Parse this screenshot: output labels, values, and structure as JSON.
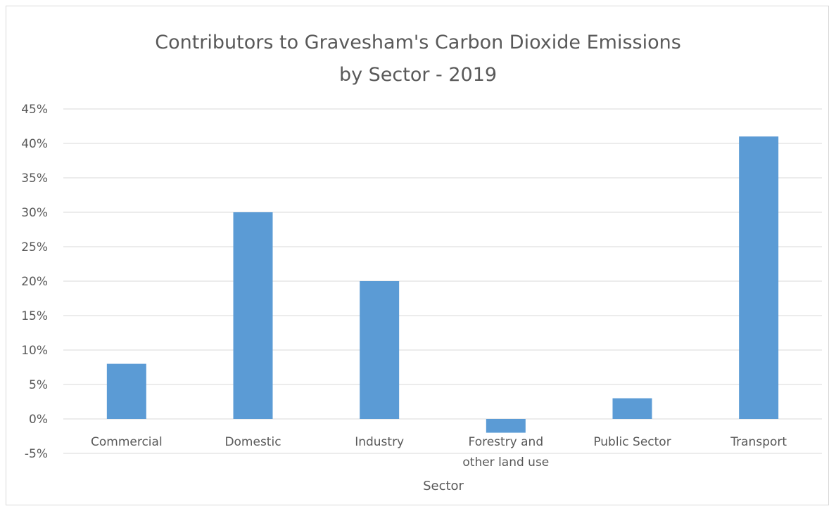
{
  "chart_data": {
    "type": "bar",
    "title_lines": [
      "Contributors to Gravesham's Carbon Dioxide Emissions",
      "by Sector - 2019"
    ],
    "xlabel": "Sector",
    "ylabel": "",
    "categories": [
      [
        "Commercial"
      ],
      [
        "Domestic"
      ],
      [
        "Industry"
      ],
      [
        "Forestry and",
        "other land use"
      ],
      [
        "Public Sector"
      ],
      [
        "Transport"
      ]
    ],
    "values": [
      8,
      30,
      20,
      -2,
      3,
      41
    ],
    "ylim": [
      -5,
      45
    ],
    "ytick_labels": [
      "-5%",
      "0%",
      "5%",
      "10%",
      "15%",
      "20%",
      "25%",
      "30%",
      "35%",
      "40%",
      "45%"
    ],
    "ytick_values": [
      -5,
      0,
      5,
      10,
      15,
      20,
      25,
      30,
      35,
      40,
      45
    ],
    "bar_color": "#5b9bd5",
    "grid": true,
    "legend": "none"
  }
}
